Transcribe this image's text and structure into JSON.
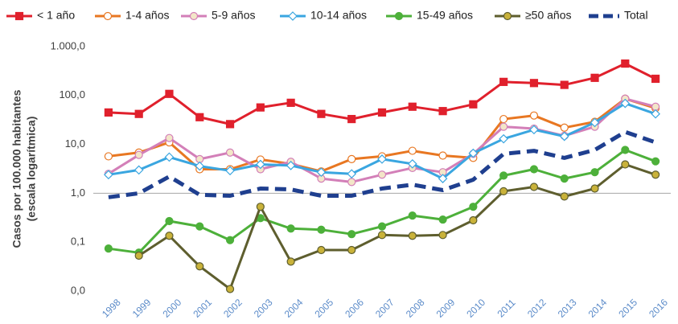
{
  "chart_data": {
    "type": "line",
    "y_label": [
      "Casos por 100.000 habitantes",
      "(escala logarítmica)"
    ],
    "log_scale": true,
    "x_axis_crosses": 1,
    "ylim": [
      0.01,
      1000
    ],
    "yticks": [
      {
        "value": 0.01,
        "label": "0,0"
      },
      {
        "value": 0.1,
        "label": "0,1"
      },
      {
        "value": 1,
        "label": "1,0"
      },
      {
        "value": 10,
        "label": "10,0"
      },
      {
        "value": 100,
        "label": "100,0"
      },
      {
        "value": 1000,
        "label": "1.000,0"
      }
    ],
    "categories": [
      "1998",
      "1999",
      "2000",
      "2001",
      "2002",
      "2003",
      "2004",
      "2005",
      "2006",
      "2007",
      "2008",
      "2009",
      "2010",
      "2011",
      "2012",
      "2013",
      "2014",
      "2015",
      "2016"
    ],
    "series": [
      {
        "name": "< 1 año",
        "color": "#e0202c",
        "marker": "square",
        "marker_fill": "#e0202c",
        "values": [
          45,
          42,
          108,
          36,
          26,
          57,
          71,
          42,
          33,
          45,
          59,
          48,
          66,
          190,
          180,
          165,
          230,
          450,
          220
        ]
      },
      {
        "name": "1-4 años",
        "color": "#e87722",
        "marker": "circle",
        "marker_fill": "#ffffff",
        "values": [
          5.7,
          6.8,
          11,
          3.1,
          3.1,
          4.9,
          4.0,
          2.8,
          5.0,
          5.7,
          7.4,
          5.9,
          5.3,
          33,
          39,
          22,
          29,
          86,
          55
        ]
      },
      {
        "name": "5-9 años",
        "color": "#d37fb8",
        "marker": "circle",
        "marker_fill": "#f3e6c8",
        "values": [
          2.5,
          6.1,
          13.5,
          5.0,
          6.8,
          3.1,
          4.4,
          2.0,
          1.7,
          2.4,
          3.3,
          2.7,
          6.4,
          23,
          21,
          15,
          23,
          86,
          59
        ]
      },
      {
        "name": "10-14 años",
        "color": "#3aa6e0",
        "marker": "diamond",
        "marker_fill": "#ffffff",
        "values": [
          2.4,
          3.0,
          5.5,
          3.6,
          2.9,
          3.9,
          3.7,
          2.7,
          2.5,
          5.0,
          4.0,
          2.0,
          6.6,
          13,
          20,
          14.6,
          28,
          69,
          42
        ]
      },
      {
        "name": "15-49 años",
        "color": "#4db03a",
        "marker": "circle",
        "marker_fill": "#4db03a",
        "values": [
          0.074,
          0.061,
          0.27,
          0.21,
          0.11,
          0.31,
          0.19,
          0.18,
          0.146,
          0.21,
          0.35,
          0.29,
          0.53,
          2.3,
          3.1,
          2.0,
          2.7,
          7.7,
          4.5
        ]
      },
      {
        "name": "≥50 años",
        "color": "#5e5e2e",
        "marker": "circle",
        "marker_fill": "#c9b23a",
        "values": [
          null,
          0.053,
          0.135,
          0.032,
          0.011,
          0.53,
          0.04,
          0.069,
          0.069,
          0.14,
          0.135,
          0.14,
          0.28,
          1.1,
          1.35,
          0.86,
          1.25,
          3.9,
          2.4
        ]
      },
      {
        "name": "Total",
        "color": "#1f3f8f",
        "marker": "none",
        "dashed": true,
        "values": [
          0.83,
          1.0,
          2.2,
          0.93,
          0.89,
          1.25,
          1.2,
          0.89,
          0.89,
          1.25,
          1.5,
          1.16,
          1.9,
          6.4,
          7.4,
          5.3,
          7.7,
          18,
          11
        ]
      }
    ]
  }
}
